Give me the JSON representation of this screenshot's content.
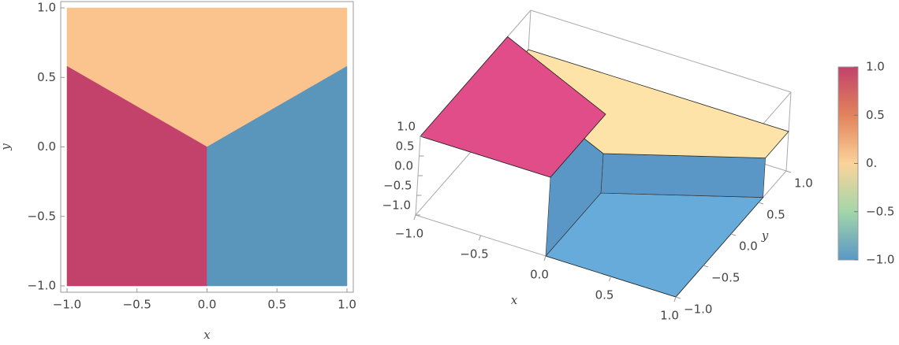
{
  "chart_data": [
    {
      "type": "region",
      "xlabel": "x",
      "ylabel": "y",
      "xlim": [
        -1,
        1
      ],
      "ylim": [
        -1,
        1
      ],
      "xticks": [
        {
          "value": -1,
          "label": "−1.0"
        },
        {
          "value": -0.5,
          "label": "−0.5"
        },
        {
          "value": 0,
          "label": "0.0"
        },
        0.5,
        {
          "value": 1,
          "label": "1.0"
        }
      ],
      "yticks": [
        {
          "value": -1,
          "label": "−1.0"
        },
        {
          "value": -0.5,
          "label": "−0.5"
        },
        {
          "value": 0,
          "label": "0.0"
        },
        0.5,
        {
          "value": 1,
          "label": "1.0"
        }
      ],
      "regions": [
        {
          "value": 0,
          "color": "#fbc48e",
          "polygon": [
            [
              -1,
              1
            ],
            [
              1,
              1
            ],
            [
              1,
              0.58
            ],
            [
              0,
              0
            ],
            [
              -1,
              0.58
            ]
          ]
        },
        {
          "value": 1,
          "color": "#c2426b",
          "polygon": [
            [
              -1,
              0.58
            ],
            [
              0,
              0
            ],
            [
              0,
              -1
            ],
            [
              -1,
              -1
            ]
          ]
        },
        {
          "value": -1,
          "color": "#5a95bb",
          "polygon": [
            [
              0,
              0
            ],
            [
              1,
              0.58
            ],
            [
              1,
              -1
            ],
            [
              0,
              -1
            ]
          ]
        }
      ]
    },
    {
      "type": "surface3d",
      "xlabel": "x",
      "ylabel": "y",
      "xlim": [
        -1,
        1
      ],
      "ylim": [
        -1,
        1
      ],
      "zlim": [
        -1,
        1
      ],
      "xticks": [
        {
          "value": -1,
          "label": "−1.0"
        },
        {
          "value": -0.5,
          "label": "−0.5"
        },
        {
          "value": 0,
          "label": "0.0"
        },
        0.5,
        {
          "value": 1,
          "label": "1.0"
        }
      ],
      "yticks": [
        {
          "value": -1,
          "label": "−1.0"
        },
        {
          "value": -0.5,
          "label": "−0.5"
        },
        {
          "value": 0,
          "label": "0.0"
        },
        0.5,
        {
          "value": 1,
          "label": "1.0"
        }
      ],
      "zticks": [
        {
          "value": -1,
          "label": "−1.0"
        },
        {
          "value": -0.5,
          "label": "−0.5"
        },
        {
          "value": 0,
          "label": "0.0"
        },
        0.5,
        {
          "value": 1,
          "label": "1.0"
        }
      ],
      "regions": [
        {
          "value": -1,
          "color": "#67abda",
          "polygon": [
            [
              0,
              0
            ],
            [
              1,
              0.58
            ],
            [
              1,
              -1
            ],
            [
              0,
              -1
            ]
          ]
        },
        {
          "value": 0,
          "color": "#fde3a8",
          "polygon": [
            [
              -1,
              1
            ],
            [
              1,
              1
            ],
            [
              1,
              0.58
            ],
            [
              0,
              0
            ],
            [
              -1,
              0.58
            ]
          ]
        },
        {
          "value": 1,
          "color": "#e04d89",
          "polygon": [
            [
              -1,
              0.58
            ],
            [
              0,
              0
            ],
            [
              0,
              -1
            ],
            [
              -1,
              -1
            ]
          ]
        }
      ]
    },
    {
      "type": "colorbar",
      "ylim": [
        -1,
        1
      ],
      "yticks": [
        {
          "value": -1,
          "label": "−1.0"
        },
        {
          "value": -0.5,
          "label": "−0.5"
        },
        {
          "value": 0,
          "label": "0."
        },
        0.5,
        {
          "value": 1,
          "label": "1.0"
        }
      ],
      "stops": [
        {
          "value": -1,
          "color": "#5a97c6"
        },
        {
          "value": -0.5,
          "color": "#a3d6a9"
        },
        {
          "value": 0,
          "color": "#fbd39a"
        },
        {
          "value": 0.5,
          "color": "#e2835b"
        },
        {
          "value": 1,
          "color": "#c2426b"
        }
      ]
    }
  ]
}
